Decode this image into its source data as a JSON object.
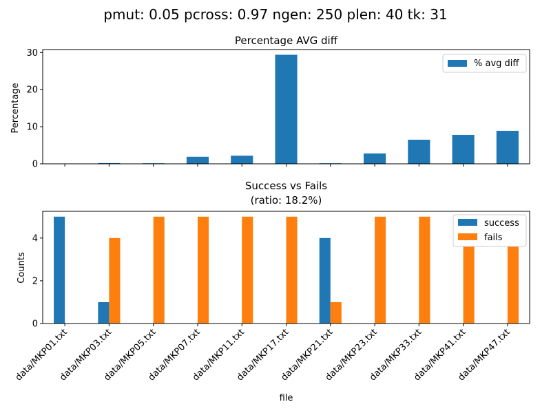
{
  "suptitle": "pmut: 0.05 pcross: 0.97 ngen: 250 plen: 40 tk: 31",
  "colors": {
    "blue": "#1f77b4",
    "orange": "#ff7f0e"
  },
  "chart_data": [
    {
      "type": "bar",
      "title": "Percentage AVG diff",
      "xlabel": "",
      "ylabel": "Percentage",
      "ylim": [
        0,
        30.8
      ],
      "yticks": [
        "0",
        "10",
        "20",
        "30"
      ],
      "legend_position": "top-right",
      "categories": [
        "data/MKP01.txt",
        "data/MKP03.txt",
        "data/MKP05.txt",
        "data/MKP07.txt",
        "data/MKP11.txt",
        "data/MKP17.txt",
        "data/MKP21.txt",
        "data/MKP23.txt",
        "data/MKP33.txt",
        "data/MKP41.txt",
        "data/MKP47.txt"
      ],
      "series": [
        {
          "name": "% avg diff",
          "color": "#1f77b4",
          "values": [
            0.0,
            0.2,
            0.15,
            1.9,
            2.2,
            29.4,
            0.15,
            2.8,
            6.5,
            7.8,
            8.9
          ]
        }
      ]
    },
    {
      "type": "bar",
      "title": "Success vs Fails",
      "subtitle": "(ratio: 18.2%)",
      "xlabel": "file",
      "ylabel": "Counts",
      "ylim": [
        0,
        5.25
      ],
      "yticks": [
        "0",
        "2",
        "4"
      ],
      "legend_position": "top-right",
      "categories": [
        "data/MKP01.txt",
        "data/MKP03.txt",
        "data/MKP05.txt",
        "data/MKP07.txt",
        "data/MKP11.txt",
        "data/MKP17.txt",
        "data/MKP21.txt",
        "data/MKP23.txt",
        "data/MKP33.txt",
        "data/MKP41.txt",
        "data/MKP47.txt"
      ],
      "series": [
        {
          "name": "success",
          "color": "#1f77b4",
          "values": [
            5,
            1,
            0,
            0,
            0,
            0,
            4,
            0,
            0,
            0,
            0
          ]
        },
        {
          "name": "fails",
          "color": "#ff7f0e",
          "values": [
            0,
            4,
            5,
            5,
            5,
            5,
            1,
            5,
            5,
            5,
            5
          ]
        }
      ]
    }
  ]
}
